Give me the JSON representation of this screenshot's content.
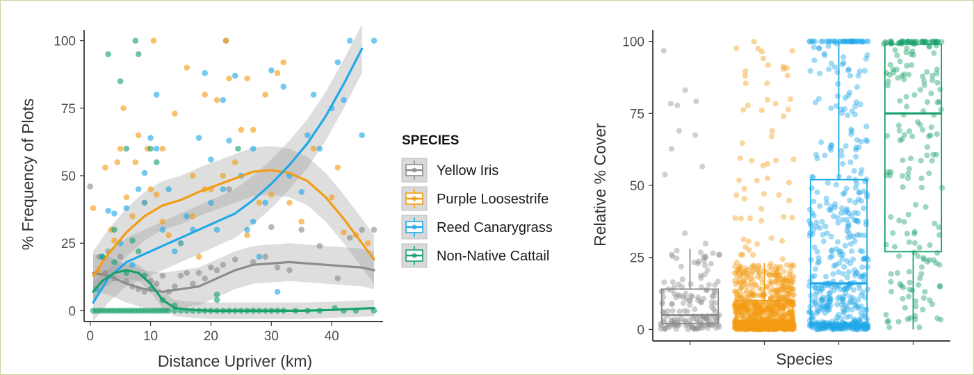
{
  "colors": {
    "Yellow Iris": "#8c8c8c",
    "Purple Loosestrife": "#f39c12",
    "Reed Canarygrass": "#1fa8e8",
    "Non-Native Cattail": "#16a06a"
  },
  "chart_data": [
    {
      "type": "scatter",
      "xlabel": "Distance Upriver (km)",
      "ylabel": "% Frequency of Plots",
      "xlim": [
        -1,
        48.5
      ],
      "ylim": [
        -4,
        104
      ],
      "xticks": [
        "0",
        "10",
        "20",
        "30",
        "40"
      ],
      "yticks": [
        "0",
        "25",
        "50",
        "75",
        "100"
      ],
      "legend": {
        "title": "SPECIES",
        "placement": "right",
        "entries": [
          "Yellow Iris",
          "Purple Loosestrife",
          "Reed Canarygrass",
          "Non-Native Cattail"
        ]
      },
      "smooth_lines": [
        {
          "name": "Yellow Iris",
          "x": [
            0.5,
            3,
            6,
            9,
            12,
            15,
            18,
            21,
            24,
            27,
            30,
            33,
            36,
            39,
            42,
            45,
            47
          ],
          "y": [
            14,
            13,
            10,
            8,
            7,
            8,
            9,
            12,
            15,
            17,
            17.5,
            18,
            17.5,
            17,
            16.5,
            16,
            15
          ],
          "band": 7
        },
        {
          "name": "Purple Loosestrife",
          "x": [
            0.5,
            3,
            6,
            9,
            12,
            15,
            18,
            21,
            24,
            27,
            30,
            33,
            36,
            39,
            42,
            45,
            47
          ],
          "y": [
            13,
            21,
            29,
            35,
            39,
            41,
            44,
            46.5,
            49,
            51.5,
            52,
            51,
            48,
            42,
            34,
            25,
            19
          ],
          "band": 9
        },
        {
          "name": "Reed Canarygrass",
          "x": [
            0.5,
            3,
            6,
            9,
            12,
            15,
            18,
            21,
            24,
            27,
            30,
            33,
            36,
            39,
            42,
            45
          ],
          "y": [
            3,
            12,
            18,
            21,
            24,
            27,
            30,
            33,
            36,
            41,
            47,
            54,
            62,
            72,
            84,
            97
          ],
          "band": 9
        },
        {
          "name": "Non-Native Cattail",
          "x": [
            0.5,
            2,
            4,
            6,
            8,
            10,
            12,
            14,
            17,
            20,
            25,
            30,
            35,
            40,
            45,
            47
          ],
          "y": [
            7,
            11,
            14,
            15,
            14,
            10,
            4,
            1,
            0.3,
            0,
            0,
            0,
            0,
            0.3,
            0.8,
            1
          ],
          "band": 3
        }
      ],
      "series": [
        {
          "name": "Yellow Iris",
          "points": [
            [
              0,
              46
            ],
            [
              1.5,
              20
            ],
            [
              2.5,
              14
            ],
            [
              4,
              12
            ],
            [
              5,
              20
            ],
            [
              6,
              11
            ],
            [
              7,
              9
            ],
            [
              8,
              8
            ],
            [
              9,
              7
            ],
            [
              10,
              11
            ],
            [
              11,
              10
            ],
            [
              12,
              13
            ],
            [
              13,
              7
            ],
            [
              14,
              9
            ],
            [
              15,
              13
            ],
            [
              17,
              10
            ],
            [
              18,
              14
            ],
            [
              19,
              12
            ],
            [
              20,
              16
            ],
            [
              21,
              15
            ],
            [
              22,
              17
            ],
            [
              24,
              19
            ],
            [
              27,
              18
            ],
            [
              29,
              20
            ],
            [
              31,
              16
            ],
            [
              33,
              15
            ],
            [
              35,
              30
            ],
            [
              38,
              24
            ],
            [
              41,
              12
            ],
            [
              43,
              27
            ],
            [
              45,
              30
            ],
            [
              47,
              30
            ],
            [
              22.5,
              100
            ],
            [
              23,
              45
            ],
            [
              30,
              31
            ],
            [
              3,
              22
            ],
            [
              16,
              14
            ]
          ]
        },
        {
          "name": "Purple Loosestrife",
          "points": [
            [
              0.5,
              38
            ],
            [
              1.5,
              14
            ],
            [
              2.5,
              53
            ],
            [
              3.5,
              30
            ],
            [
              4.5,
              55
            ],
            [
              5,
              60
            ],
            [
              5.5,
              75
            ],
            [
              6,
              42
            ],
            [
              7,
              35
            ],
            [
              7.5,
              55
            ],
            [
              8,
              65
            ],
            [
              9,
              40
            ],
            [
              9.5,
              60
            ],
            [
              10,
              45
            ],
            [
              10.5,
              100
            ],
            [
              11,
              43
            ],
            [
              12,
              33
            ],
            [
              13,
              28
            ],
            [
              14,
              73
            ],
            [
              15,
              25
            ],
            [
              16,
              90
            ],
            [
              17,
              35
            ],
            [
              18,
              20
            ],
            [
              19,
              80
            ],
            [
              20,
              45
            ],
            [
              21,
              78
            ],
            [
              22,
              50
            ],
            [
              22.5,
              100
            ],
            [
              23,
              86
            ],
            [
              24,
              55
            ],
            [
              25,
              67
            ],
            [
              26,
              86
            ],
            [
              27,
              67
            ],
            [
              28,
              40
            ],
            [
              29,
              80
            ],
            [
              30,
              43
            ],
            [
              31,
              88
            ],
            [
              32,
              92
            ],
            [
              35,
              33
            ],
            [
              37,
              60
            ],
            [
              40,
              42
            ],
            [
              41,
              53
            ],
            [
              42,
              29
            ],
            [
              44,
              28
            ],
            [
              46,
              25
            ],
            [
              12,
              60
            ],
            [
              17,
              50
            ],
            [
              33,
              40
            ],
            [
              4,
              26
            ],
            [
              26,
              28
            ],
            [
              19,
              45
            ]
          ]
        },
        {
          "name": "Reed Canarygrass",
          "points": [
            [
              1,
              8
            ],
            [
              2,
              20
            ],
            [
              3,
              37
            ],
            [
              4,
              36
            ],
            [
              5,
              25
            ],
            [
              6,
              38
            ],
            [
              7,
              17
            ],
            [
              8,
              45
            ],
            [
              9,
              40
            ],
            [
              10,
              64
            ],
            [
              11,
              80
            ],
            [
              12,
              30
            ],
            [
              13,
              45
            ],
            [
              14,
              22
            ],
            [
              15,
              25
            ],
            [
              16,
              35
            ],
            [
              17,
              30
            ],
            [
              18,
              64
            ],
            [
              19,
              88
            ],
            [
              20,
              40
            ],
            [
              21,
              30
            ],
            [
              22,
              45
            ],
            [
              23,
              63
            ],
            [
              24,
              87
            ],
            [
              25,
              50
            ],
            [
              26,
              30
            ],
            [
              27,
              33
            ],
            [
              28,
              20
            ],
            [
              29,
              40
            ],
            [
              30,
              89
            ],
            [
              31,
              7
            ],
            [
              32,
              83
            ],
            [
              33,
              50
            ],
            [
              35,
              44
            ],
            [
              36,
              65
            ],
            [
              37,
              80
            ],
            [
              38,
              60
            ],
            [
              40,
              75
            ],
            [
              41,
              92
            ],
            [
              42,
              78
            ],
            [
              43,
              100
            ],
            [
              45,
              65
            ],
            [
              47,
              100
            ],
            [
              11,
              60
            ],
            [
              20,
              56
            ],
            [
              27,
              60
            ],
            [
              22,
              78
            ],
            [
              9,
              51
            ]
          ]
        },
        {
          "name": "Non-Native Cattail",
          "points": [
            [
              3,
              95
            ],
            [
              5,
              85
            ],
            [
              7.5,
              100
            ],
            [
              8,
              95
            ],
            [
              4,
              30
            ],
            [
              6,
              60
            ],
            [
              10,
              60
            ],
            [
              11,
              55
            ],
            [
              2,
              20
            ],
            [
              4,
              18
            ],
            [
              6,
              14
            ],
            [
              7,
              26
            ],
            [
              8,
              22
            ],
            [
              9,
              13
            ],
            [
              10,
              8
            ],
            [
              12,
              4
            ],
            [
              14,
              2
            ],
            [
              21,
              4
            ],
            [
              21,
              6
            ],
            [
              24.5,
              60
            ],
            [
              40.5,
              1
            ],
            [
              47,
              0
            ],
            [
              0.5,
              0
            ],
            [
              1,
              0
            ],
            [
              1.5,
              0
            ],
            [
              2,
              0
            ],
            [
              2.5,
              0
            ],
            [
              3,
              0
            ],
            [
              3.5,
              0
            ],
            [
              4,
              0
            ],
            [
              4.5,
              0
            ],
            [
              5,
              0
            ],
            [
              5.5,
              0
            ],
            [
              6,
              0
            ],
            [
              6.5,
              0
            ],
            [
              7,
              0
            ],
            [
              7.5,
              0
            ],
            [
              8,
              0
            ],
            [
              8.5,
              0
            ],
            [
              9,
              0
            ],
            [
              9.5,
              0
            ],
            [
              10,
              0
            ],
            [
              10.5,
              0
            ],
            [
              11,
              0
            ],
            [
              11.5,
              0
            ],
            [
              12,
              0
            ],
            [
              12.5,
              0
            ],
            [
              13,
              0
            ],
            [
              14,
              0
            ],
            [
              15,
              0
            ],
            [
              16,
              0
            ],
            [
              17,
              0
            ],
            [
              18,
              0
            ],
            [
              19,
              0
            ],
            [
              20,
              0
            ],
            [
              21,
              0
            ],
            [
              22,
              0
            ],
            [
              23,
              0
            ],
            [
              24,
              0
            ],
            [
              25,
              0
            ],
            [
              26,
              0
            ],
            [
              27,
              0
            ],
            [
              28,
              0
            ],
            [
              29,
              0
            ],
            [
              30,
              0
            ],
            [
              31,
              0
            ],
            [
              32,
              0
            ],
            [
              34,
              0
            ],
            [
              36,
              0
            ],
            [
              38,
              0
            ],
            [
              42,
              0
            ],
            [
              44,
              0
            ]
          ]
        }
      ]
    },
    {
      "type": "box",
      "xlabel": "Species",
      "ylabel": "Relative % Cover",
      "ylim": [
        -4,
        104
      ],
      "yticks": [
        "0",
        "25",
        "50",
        "75",
        "100"
      ],
      "categories": [
        "Yellow Iris",
        "Purple Loosestrife",
        "Reed Canarygrass",
        "Non-Native Cattail"
      ],
      "boxes": [
        {
          "name": "Yellow Iris",
          "whisker_low": 0,
          "q1": 2,
          "median": 5,
          "q3": 14,
          "whisker_high": 28,
          "n_points": 170
        },
        {
          "name": "Purple Loosestrife",
          "whisker_low": 0,
          "q1": 1,
          "median": 3,
          "q3": 10,
          "whisker_high": 23,
          "n_points": 900
        },
        {
          "name": "Reed Canarygrass",
          "whisker_low": 0,
          "q1": 2,
          "median": 16,
          "q3": 52,
          "whisker_high": 100,
          "n_points": 520
        },
        {
          "name": "Non-Native Cattail",
          "whisker_low": 0,
          "q1": 27,
          "median": 75,
          "q3": 99,
          "whisker_high": 100,
          "n_points": 200
        }
      ]
    }
  ]
}
